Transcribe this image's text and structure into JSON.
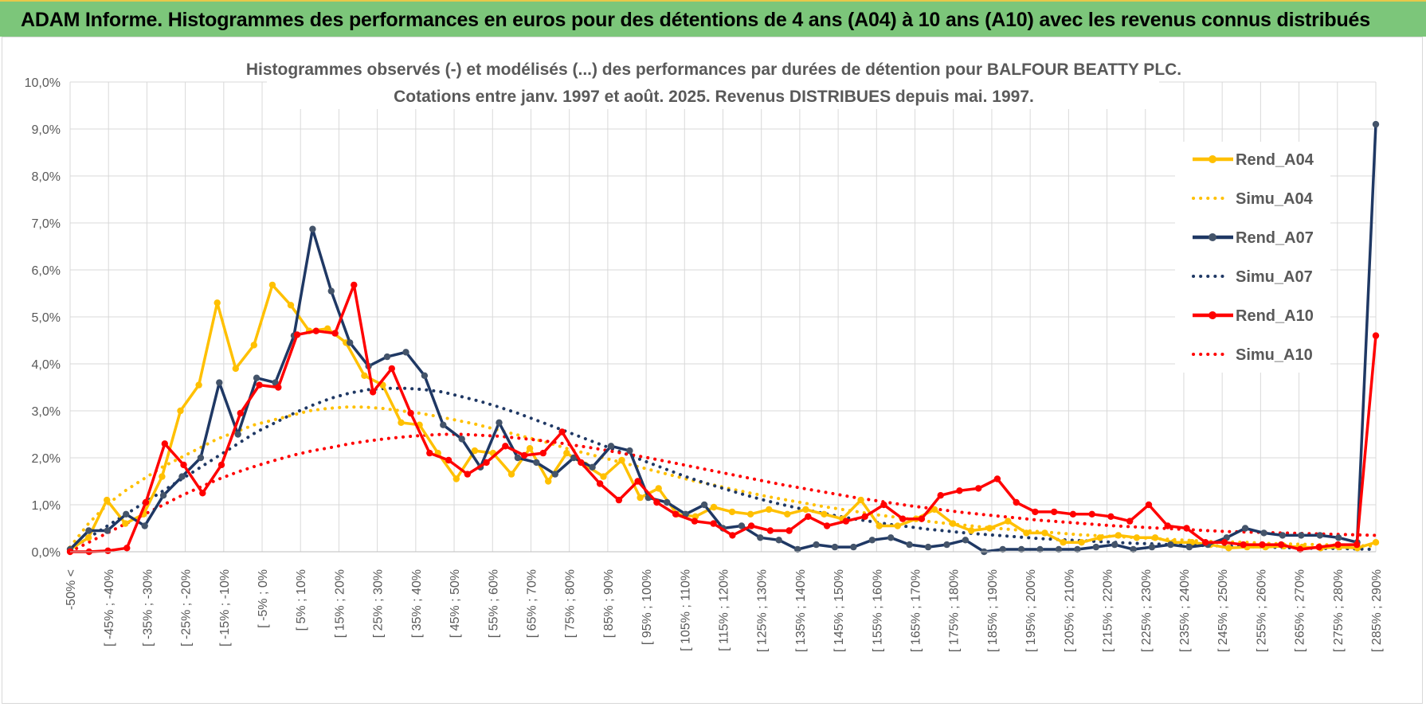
{
  "header": {
    "title": "ADAM Informe. Histogrammes des performances en euros pour des détentions de 4 ans (A04) à 10 ans (A10) avec les revenus connus distribués"
  },
  "chart_data": {
    "type": "line",
    "title_lines": [
      "Histogrammes observés (-) et modélisés (...) des performances par durées de détention pour BALFOUR BEATTY PLC.",
      "Cotations entre janv. 1997 et août. 2025. Revenus DISTRIBUES depuis mai. 1997."
    ],
    "ylim": [
      0,
      10
    ],
    "y_ticks": [
      "0,0%",
      "1,0%",
      "2,0%",
      "3,0%",
      "4,0%",
      "5,0%",
      "6,0%",
      "7,0%",
      "8,0%",
      "9,0%",
      "10,0%"
    ],
    "grid": true,
    "legend_position": "right",
    "x_labels": [
      "-50% <",
      "[ -45% ; -40%",
      "[ -35% ; -30%",
      "[ -25% ; -20%",
      "[ -15% ; -10%",
      "[ -5% ; 0%",
      "[ 5% ; 10%",
      "[ 15% ; 20%",
      "[ 25% ; 30%",
      "[ 35% ; 40%",
      "[ 45% ; 50%",
      "[ 55% ; 60%",
      "[ 65% ; 70%",
      "[ 75% ; 80%",
      "[ 85% ; 90%",
      "[ 95% ; 100%",
      "[ 105% ; 110%",
      "[ 115% ; 120%",
      "[ 125% ; 130%",
      "[ 135% ; 140%",
      "[ 145% ; 150%",
      "[ 155% ; 160%",
      "[ 165% ; 170%",
      "[ 175% ; 180%",
      "[ 185% ; 190%",
      "[ 195% ; 200%",
      "[ 205% ; 210%",
      "[ 215% ; 220%",
      "[ 225% ; 230%",
      "[ 235% ; 240%",
      "[ 245% ; 250%",
      "[ 255% ; 260%",
      "[ 265% ; 270%",
      "[ 275% ; 280%",
      "[ 285% ; 290%"
    ],
    "series": [
      {
        "name": "Rend_A04",
        "style": "solid",
        "color": "#ffc000",
        "values": [
          0.05,
          0.3,
          1.1,
          0.6,
          0.8,
          1.6,
          3.0,
          3.55,
          5.3,
          3.9,
          4.4,
          5.68,
          5.25,
          4.7,
          4.75,
          4.45,
          3.75,
          3.55,
          2.75,
          2.7,
          2.1,
          1.55,
          2.15,
          2.1,
          1.65,
          2.2,
          1.5,
          2.1,
          1.85,
          1.6,
          1.95,
          1.15,
          1.35,
          0.8,
          0.75,
          0.95,
          0.85,
          0.8,
          0.9,
          0.8,
          0.9,
          0.8,
          0.7,
          1.1,
          0.55,
          0.55,
          0.7,
          0.9,
          0.6,
          0.45,
          0.5,
          0.65,
          0.4,
          0.4,
          0.2,
          0.2,
          0.3,
          0.35,
          0.3,
          0.3,
          0.2,
          0.2,
          0.15,
          0.08,
          0.1,
          0.1,
          0.12,
          0.1,
          0.08,
          0.1,
          0.08,
          0.2
        ]
      },
      {
        "name": "Simu_A04",
        "style": "dotted",
        "color": "#ffc000",
        "values": [
          0.1,
          0.6,
          1.0,
          1.3,
          1.55,
          1.8,
          2.0,
          2.2,
          2.4,
          2.55,
          2.7,
          2.8,
          2.9,
          3.0,
          3.05,
          3.08,
          3.08,
          3.05,
          3.0,
          2.95,
          2.88,
          2.8,
          2.72,
          2.62,
          2.52,
          2.42,
          2.32,
          2.2,
          2.1,
          2.0,
          1.9,
          1.8,
          1.7,
          1.6,
          1.5,
          1.42,
          1.33,
          1.25,
          1.17,
          1.1,
          1.03,
          0.96,
          0.9,
          0.84,
          0.78,
          0.73,
          0.68,
          0.63,
          0.59,
          0.55,
          0.51,
          0.48,
          0.45,
          0.42,
          0.39,
          0.36,
          0.34,
          0.32,
          0.3,
          0.28,
          0.26,
          0.24,
          0.22,
          0.21,
          0.2,
          0.18,
          0.17,
          0.16,
          0.15,
          0.14,
          0.13,
          0.12
        ]
      },
      {
        "name": "Rend_A07",
        "style": "solid",
        "color": "#1f3864",
        "values": [
          0.05,
          0.45,
          0.45,
          0.8,
          0.55,
          1.2,
          1.6,
          2.0,
          3.6,
          2.5,
          3.7,
          3.6,
          4.6,
          6.87,
          5.55,
          4.45,
          3.95,
          4.15,
          4.25,
          3.75,
          2.7,
          2.4,
          1.8,
          2.75,
          2.0,
          1.9,
          1.65,
          2.0,
          1.8,
          2.25,
          2.15,
          1.15,
          1.05,
          0.8,
          1.0,
          0.5,
          0.55,
          0.3,
          0.25,
          0.05,
          0.15,
          0.1,
          0.1,
          0.25,
          0.3,
          0.15,
          0.1,
          0.15,
          0.25,
          0.0,
          0.05,
          0.05,
          0.05,
          0.05,
          0.05,
          0.1,
          0.15,
          0.05,
          0.1,
          0.15,
          0.1,
          0.15,
          0.3,
          0.5,
          0.4,
          0.35,
          0.35,
          0.35,
          0.3,
          0.2,
          9.1
        ]
      },
      {
        "name": "Simu_A07",
        "style": "dotted",
        "color": "#1f3864",
        "values": [
          0.05,
          0.3,
          0.55,
          0.8,
          1.05,
          1.3,
          1.55,
          1.8,
          2.05,
          2.3,
          2.55,
          2.75,
          2.95,
          3.12,
          3.27,
          3.38,
          3.45,
          3.48,
          3.48,
          3.45,
          3.4,
          3.3,
          3.2,
          3.08,
          2.95,
          2.8,
          2.65,
          2.5,
          2.35,
          2.2,
          2.05,
          1.9,
          1.75,
          1.6,
          1.47,
          1.35,
          1.23,
          1.12,
          1.02,
          0.93,
          0.85,
          0.77,
          0.7,
          0.64,
          0.58,
          0.53,
          0.48,
          0.44,
          0.4,
          0.37,
          0.34,
          0.31,
          0.28,
          0.26,
          0.24,
          0.22,
          0.2,
          0.18,
          0.17,
          0.15,
          0.14,
          0.13,
          0.12,
          0.11,
          0.1,
          0.09,
          0.08,
          0.07,
          0.07,
          0.06,
          0.05
        ]
      },
      {
        "name": "Rend_A10",
        "style": "solid",
        "color": "#ff0000",
        "values": [
          0.0,
          0.0,
          0.02,
          0.08,
          1.05,
          2.3,
          1.85,
          1.25,
          1.85,
          2.95,
          3.55,
          3.5,
          4.62,
          4.7,
          4.65,
          5.68,
          3.4,
          3.9,
          2.95,
          2.1,
          1.95,
          1.65,
          1.9,
          2.25,
          2.05,
          2.1,
          2.55,
          1.9,
          1.45,
          1.1,
          1.5,
          1.05,
          0.8,
          0.65,
          0.6,
          0.35,
          0.55,
          0.45,
          0.45,
          0.75,
          0.55,
          0.65,
          0.75,
          1.0,
          0.7,
          0.7,
          1.2,
          1.3,
          1.35,
          1.55,
          1.05,
          0.85,
          0.85,
          0.8,
          0.8,
          0.75,
          0.65,
          1.0,
          0.55,
          0.5,
          0.2,
          0.2,
          0.15,
          0.15,
          0.15,
          0.05,
          0.1,
          0.15,
          0.15,
          4.6
        ]
      },
      {
        "name": "Simu_A10",
        "style": "dotted",
        "color": "#ff0000",
        "values": [
          0.0,
          0.2,
          0.4,
          0.6,
          0.8,
          1.0,
          1.2,
          1.38,
          1.55,
          1.7,
          1.83,
          1.95,
          2.06,
          2.15,
          2.22,
          2.3,
          2.36,
          2.41,
          2.45,
          2.48,
          2.5,
          2.5,
          2.48,
          2.46,
          2.42,
          2.38,
          2.33,
          2.27,
          2.21,
          2.14,
          2.07,
          2.0,
          1.92,
          1.84,
          1.76,
          1.68,
          1.6,
          1.52,
          1.44,
          1.37,
          1.3,
          1.23,
          1.16,
          1.1,
          1.04,
          0.98,
          0.93,
          0.88,
          0.83,
          0.79,
          0.75,
          0.71,
          0.67,
          0.64,
          0.61,
          0.58,
          0.55,
          0.53,
          0.51,
          0.49,
          0.47,
          0.45,
          0.43,
          0.42,
          0.41,
          0.4,
          0.39,
          0.38,
          0.37,
          0.36,
          0.35
        ]
      }
    ]
  }
}
